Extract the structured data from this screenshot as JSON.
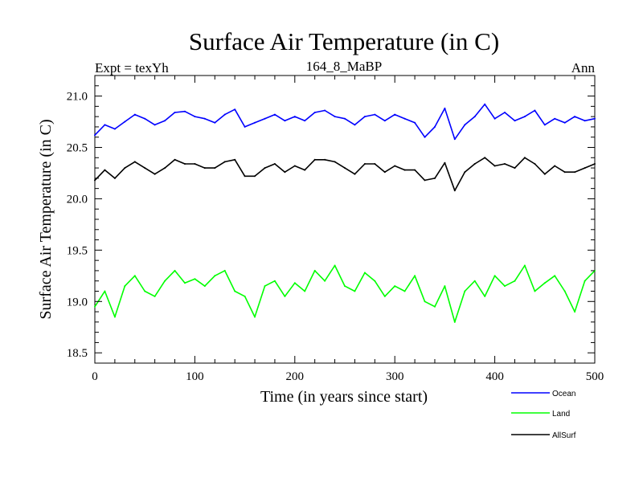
{
  "chart_data": {
    "type": "line",
    "title": "Surface Air Temperature (in C)",
    "subtitle_left": "Expt = texYh",
    "subtitle_center": "164_8_MaBP",
    "subtitle_right": "Ann",
    "xlabel": "Time (in years since start)",
    "ylabel": "Surface Air Temperature (in C)",
    "xlim": [
      0,
      500
    ],
    "ylim": [
      18.4,
      21.2
    ],
    "x_ticks": [
      0,
      100,
      200,
      300,
      400,
      500
    ],
    "x_tick_labels": [
      "0",
      "100",
      "200",
      "300",
      "400",
      "500"
    ],
    "y_ticks": [
      18.5,
      19.0,
      19.5,
      20.0,
      20.5,
      21.0
    ],
    "y_tick_labels": [
      "18.5",
      "19.0",
      "19.5",
      "20.0",
      "20.5",
      "21.0"
    ],
    "grid": false,
    "legend_position": "bottom-right, below plot",
    "legend": [
      "Ocean",
      "Land",
      "AllSurf"
    ],
    "series": [
      {
        "name": "Ocean",
        "color": "#0000ff",
        "x": [
          0,
          10,
          20,
          30,
          40,
          50,
          60,
          70,
          80,
          90,
          100,
          110,
          120,
          130,
          140,
          150,
          160,
          170,
          180,
          190,
          200,
          210,
          220,
          230,
          240,
          250,
          260,
          270,
          280,
          290,
          300,
          310,
          320,
          330,
          340,
          350,
          360,
          370,
          380,
          390,
          400,
          410,
          420,
          430,
          440,
          450,
          460,
          470,
          480,
          490,
          500
        ],
        "values": [
          20.62,
          20.72,
          20.68,
          20.75,
          20.82,
          20.78,
          20.72,
          20.76,
          20.84,
          20.85,
          20.8,
          20.78,
          20.74,
          20.82,
          20.87,
          20.7,
          20.74,
          20.78,
          20.82,
          20.76,
          20.8,
          20.76,
          20.84,
          20.86,
          20.8,
          20.78,
          20.72,
          20.8,
          20.82,
          20.76,
          20.82,
          20.78,
          20.74,
          20.6,
          20.7,
          20.88,
          20.58,
          20.72,
          20.8,
          20.92,
          20.78,
          20.84,
          20.76,
          20.8,
          20.86,
          20.72,
          20.78,
          20.74,
          20.8,
          20.76,
          20.78
        ]
      },
      {
        "name": "Land",
        "color": "#00ff00",
        "x": [
          0,
          10,
          20,
          30,
          40,
          50,
          60,
          70,
          80,
          90,
          100,
          110,
          120,
          130,
          140,
          150,
          160,
          170,
          180,
          190,
          200,
          210,
          220,
          230,
          240,
          250,
          260,
          270,
          280,
          290,
          300,
          310,
          320,
          330,
          340,
          350,
          360,
          370,
          380,
          390,
          400,
          410,
          420,
          430,
          440,
          450,
          460,
          470,
          480,
          490,
          500
        ],
        "values": [
          18.95,
          19.1,
          18.85,
          19.15,
          19.25,
          19.1,
          19.05,
          19.2,
          19.3,
          19.18,
          19.22,
          19.15,
          19.25,
          19.3,
          19.1,
          19.05,
          18.85,
          19.15,
          19.2,
          19.05,
          19.18,
          19.1,
          19.3,
          19.2,
          19.35,
          19.15,
          19.1,
          19.28,
          19.2,
          19.05,
          19.15,
          19.1,
          19.25,
          19.0,
          18.95,
          19.15,
          18.8,
          19.1,
          19.2,
          19.05,
          19.25,
          19.15,
          19.2,
          19.35,
          19.1,
          19.18,
          19.25,
          19.1,
          18.9,
          19.2,
          19.3
        ]
      },
      {
        "name": "AllSurf",
        "color": "#000000",
        "x": [
          0,
          10,
          20,
          30,
          40,
          50,
          60,
          70,
          80,
          90,
          100,
          110,
          120,
          130,
          140,
          150,
          160,
          170,
          180,
          190,
          200,
          210,
          220,
          230,
          240,
          250,
          260,
          270,
          280,
          290,
          300,
          310,
          320,
          330,
          340,
          350,
          360,
          370,
          380,
          390,
          400,
          410,
          420,
          430,
          440,
          450,
          460,
          470,
          480,
          490,
          500
        ],
        "values": [
          20.18,
          20.28,
          20.2,
          20.3,
          20.36,
          20.3,
          20.24,
          20.3,
          20.38,
          20.34,
          20.34,
          20.3,
          20.3,
          20.36,
          20.38,
          20.22,
          20.22,
          20.3,
          20.34,
          20.26,
          20.32,
          20.28,
          20.38,
          20.38,
          20.36,
          20.3,
          20.24,
          20.34,
          20.34,
          20.26,
          20.32,
          20.28,
          20.28,
          20.18,
          20.2,
          20.35,
          20.08,
          20.26,
          20.34,
          20.4,
          20.32,
          20.34,
          20.3,
          20.4,
          20.34,
          20.24,
          20.32,
          20.26,
          20.26,
          20.3,
          20.34
        ]
      }
    ]
  }
}
